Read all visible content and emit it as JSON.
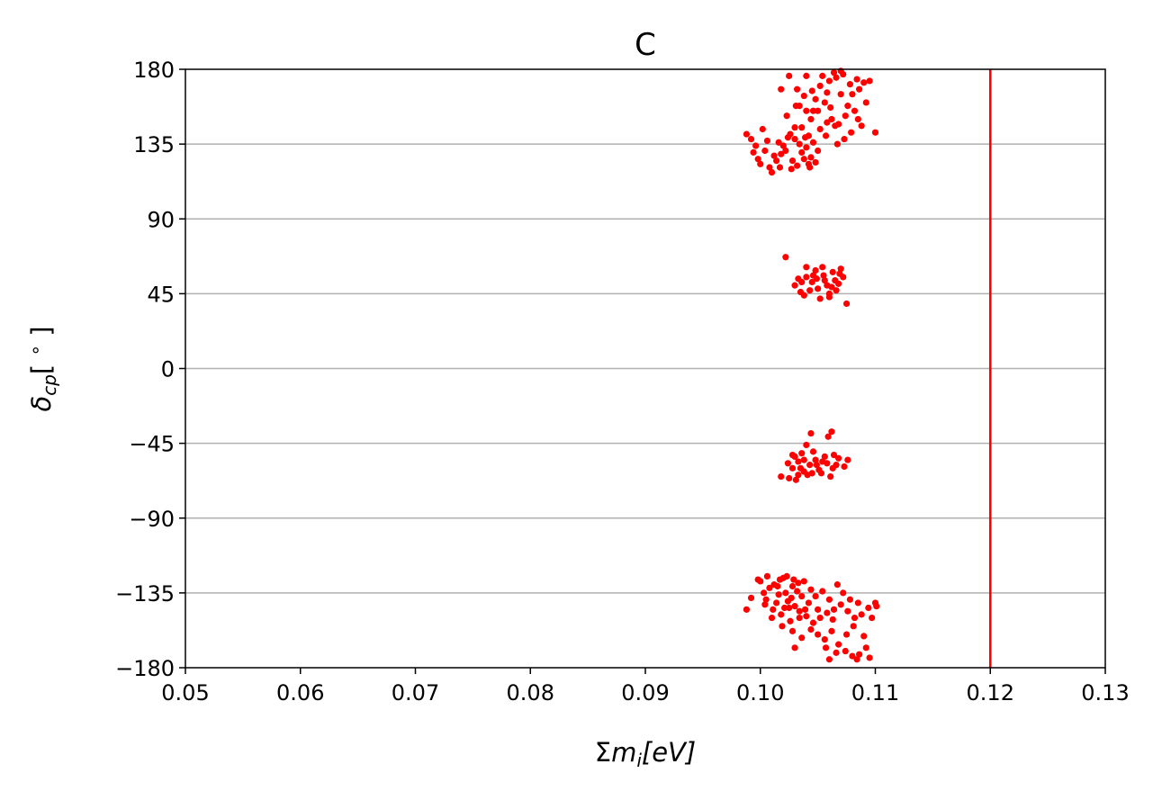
{
  "chart_data": {
    "type": "scatter",
    "title": "C",
    "xlabel_parts": [
      "Σ",
      "m",
      "i",
      "[",
      "eV",
      "]"
    ],
    "ylabel_parts": [
      "δ",
      "cp",
      "[ ",
      "∘",
      " ]"
    ],
    "xlim": [
      0.05,
      0.13
    ],
    "ylim": [
      -180,
      180
    ],
    "xticks": [
      0.05,
      0.06,
      0.07,
      0.08,
      0.09,
      0.1,
      0.11,
      0.12,
      0.13
    ],
    "xtick_labels": [
      "0.05",
      "0.06",
      "0.07",
      "0.08",
      "0.09",
      "0.10",
      "0.11",
      "0.12",
      "0.13"
    ],
    "yticks": [
      180,
      135,
      90,
      45,
      0,
      -45,
      -90,
      -135,
      -180
    ],
    "ytick_labels": [
      "180",
      "135",
      "90",
      "45",
      "0",
      "−45",
      "−90",
      "−135",
      "−180"
    ],
    "grid": "horizontal",
    "point_color": "#ff0000",
    "vline": {
      "x": 0.12,
      "color": "#ff0000"
    },
    "series": [
      {
        "points": [
          [
            0.1004,
            131
          ],
          [
            0.1012,
            128
          ],
          [
            0.102,
            134
          ],
          [
            0.1028,
            125
          ],
          [
            0.1036,
            130
          ],
          [
            0.1044,
            127
          ],
          [
            0.0992,
            138
          ],
          [
            0.0998,
            126
          ],
          [
            0.1008,
            121
          ],
          [
            0.1016,
            136
          ],
          [
            0.1024,
            139
          ],
          [
            0.1032,
            122
          ],
          [
            0.104,
            133
          ],
          [
            0.1048,
            124
          ],
          [
            0.0988,
            141
          ],
          [
            0.1002,
            144
          ],
          [
            0.101,
            118
          ],
          [
            0.1018,
            129
          ],
          [
            0.1026,
            141
          ],
          [
            0.1034,
            135
          ],
          [
            0.1042,
            123
          ],
          [
            0.105,
            131
          ],
          [
            0.0996,
            134
          ],
          [
            0.1006,
            137
          ],
          [
            0.1014,
            125
          ],
          [
            0.1022,
            131
          ],
          [
            0.103,
            138
          ],
          [
            0.1038,
            126
          ],
          [
            0.1046,
            136
          ],
          [
            0.1,
            123
          ],
          [
            0.1017,
            121
          ],
          [
            0.1039,
            139
          ],
          [
            0.1027,
            120
          ],
          [
            0.0994,
            130
          ],
          [
            0.1043,
            121
          ],
          [
            0.1023,
            152
          ],
          [
            0.1031,
            158
          ],
          [
            0.1038,
            164
          ],
          [
            0.1045,
            167
          ],
          [
            0.1052,
            170
          ],
          [
            0.106,
            173
          ],
          [
            0.1066,
            175
          ],
          [
            0.1072,
            177
          ],
          [
            0.1078,
            171
          ],
          [
            0.1084,
            174
          ],
          [
            0.109,
            172
          ],
          [
            0.1095,
            173
          ],
          [
            0.1036,
            145
          ],
          [
            0.1044,
            150
          ],
          [
            0.105,
            155
          ],
          [
            0.1056,
            160
          ],
          [
            0.1062,
            150
          ],
          [
            0.1068,
            147
          ],
          [
            0.1074,
            152
          ],
          [
            0.108,
            165
          ],
          [
            0.1086,
            168
          ],
          [
            0.1092,
            160
          ],
          [
            0.104,
            176
          ],
          [
            0.1048,
            162
          ],
          [
            0.1054,
            176
          ],
          [
            0.1058,
            166
          ],
          [
            0.1064,
            178
          ],
          [
            0.107,
            179
          ],
          [
            0.1076,
            158
          ],
          [
            0.1082,
            155
          ],
          [
            0.1088,
            146
          ],
          [
            0.11,
            142
          ],
          [
            0.1034,
            158
          ],
          [
            0.1042,
            140
          ],
          [
            0.1052,
            144
          ],
          [
            0.1061,
            157
          ],
          [
            0.1067,
            135
          ],
          [
            0.1073,
            138
          ],
          [
            0.1079,
            142
          ],
          [
            0.1085,
            150
          ],
          [
            0.1018,
            168
          ],
          [
            0.1025,
            176
          ],
          [
            0.1032,
            168
          ],
          [
            0.104,
            155
          ],
          [
            0.1057,
            140
          ],
          [
            0.1065,
            146
          ],
          [
            0.103,
            145
          ],
          [
            0.1058,
            148
          ],
          [
            0.107,
            165
          ],
          [
            0.1046,
            155
          ],
          [
            0.103,
            50
          ],
          [
            0.1035,
            46
          ],
          [
            0.104,
            55
          ],
          [
            0.1045,
            52
          ],
          [
            0.105,
            48
          ],
          [
            0.1055,
            56
          ],
          [
            0.106,
            45
          ],
          [
            0.1065,
            53
          ],
          [
            0.107,
            60
          ],
          [
            0.104,
            61
          ],
          [
            0.1048,
            59
          ],
          [
            0.1052,
            42
          ],
          [
            0.1058,
            50
          ],
          [
            0.1063,
            58
          ],
          [
            0.1068,
            51
          ],
          [
            0.1043,
            47
          ],
          [
            0.1056,
            53
          ],
          [
            0.1036,
            52
          ],
          [
            0.1046,
            56
          ],
          [
            0.1062,
            49
          ],
          [
            0.1072,
            55
          ],
          [
            0.1038,
            44
          ],
          [
            0.106,
            43
          ],
          [
            0.1022,
            67
          ],
          [
            0.1075,
            39
          ],
          [
            0.1049,
            54
          ],
          [
            0.1066,
            47
          ],
          [
            0.1054,
            61
          ],
          [
            0.1033,
            54
          ],
          [
            0.1069,
            57
          ],
          [
            0.1028,
            -60
          ],
          [
            0.1033,
            -56
          ],
          [
            0.1038,
            -62
          ],
          [
            0.1043,
            -58
          ],
          [
            0.1048,
            -55
          ],
          [
            0.1053,
            -63
          ],
          [
            0.1058,
            -57
          ],
          [
            0.1063,
            -60
          ],
          [
            0.1068,
            -54
          ],
          [
            0.1073,
            -59
          ],
          [
            0.103,
            -53
          ],
          [
            0.1036,
            -51
          ],
          [
            0.1041,
            -64
          ],
          [
            0.1046,
            -50
          ],
          [
            0.1051,
            -61
          ],
          [
            0.1056,
            -53
          ],
          [
            0.1061,
            -65
          ],
          [
            0.1066,
            -58
          ],
          [
            0.1031,
            -67
          ],
          [
            0.1025,
            -66
          ],
          [
            0.1018,
            -65
          ],
          [
            0.104,
            -46
          ],
          [
            0.1044,
            -39
          ],
          [
            0.1062,
            -38
          ],
          [
            0.1059,
            -41
          ],
          [
            0.1076,
            -55
          ],
          [
            0.1035,
            -60
          ],
          [
            0.1049,
            -58
          ],
          [
            0.1054,
            -56
          ],
          [
            0.1024,
            -57
          ],
          [
            0.1033,
            -64
          ],
          [
            0.1045,
            -63
          ],
          [
            0.1064,
            -52
          ],
          [
            0.1038,
            -55
          ],
          [
            0.1028,
            -52
          ],
          [
            0.1,
            -128
          ],
          [
            0.1008,
            -132
          ],
          [
            0.1016,
            -136
          ],
          [
            0.1024,
            -140
          ],
          [
            0.1032,
            -134
          ],
          [
            0.0992,
            -138
          ],
          [
            0.1004,
            -142
          ],
          [
            0.1012,
            -130
          ],
          [
            0.102,
            -126
          ],
          [
            0.1028,
            -131
          ],
          [
            0.1036,
            -137
          ],
          [
            0.0988,
            -145
          ],
          [
            0.0998,
            -127
          ],
          [
            0.1006,
            -125
          ],
          [
            0.1014,
            -141
          ],
          [
            0.1022,
            -135
          ],
          [
            0.103,
            -143
          ],
          [
            0.1038,
            -128
          ],
          [
            0.1018,
            -148
          ],
          [
            0.1026,
            -152
          ],
          [
            0.1034,
            -146
          ],
          [
            0.104,
            -149
          ],
          [
            0.1046,
            -153
          ],
          [
            0.1052,
            -150
          ],
          [
            0.1058,
            -147
          ],
          [
            0.1064,
            -145
          ],
          [
            0.107,
            -142
          ],
          [
            0.1076,
            -146
          ],
          [
            0.1082,
            -150
          ],
          [
            0.1088,
            -148
          ],
          [
            0.1094,
            -144
          ],
          [
            0.11,
            -141
          ],
          [
            0.1044,
            -157
          ],
          [
            0.105,
            -160
          ],
          [
            0.1056,
            -163
          ],
          [
            0.1062,
            -158
          ],
          [
            0.1068,
            -166
          ],
          [
            0.1074,
            -170
          ],
          [
            0.108,
            -173
          ],
          [
            0.1086,
            -172
          ],
          [
            0.1092,
            -168
          ],
          [
            0.1095,
            -174
          ],
          [
            0.103,
            -168
          ],
          [
            0.1036,
            -162
          ],
          [
            0.106,
            -175
          ],
          [
            0.1066,
            -171
          ],
          [
            0.1084,
            -175
          ],
          [
            0.109,
            -161
          ],
          [
            0.1042,
            -141
          ],
          [
            0.1048,
            -137
          ],
          [
            0.1054,
            -134
          ],
          [
            0.106,
            -139
          ],
          [
            0.1072,
            -135
          ],
          [
            0.1078,
            -139
          ],
          [
            0.1085,
            -141
          ],
          [
            0.1023,
            -125
          ],
          [
            0.1003,
            -135
          ],
          [
            0.1015,
            -131
          ],
          [
            0.1027,
            -138
          ],
          [
            0.1021,
            -144
          ],
          [
            0.1033,
            -129
          ],
          [
            0.1039,
            -145
          ],
          [
            0.101,
            -150
          ],
          [
            0.1019,
            -155
          ],
          [
            0.1028,
            -158
          ],
          [
            0.1034,
            -150
          ],
          [
            0.1097,
            -150
          ],
          [
            0.1057,
            -168
          ],
          [
            0.1075,
            -160
          ],
          [
            0.1063,
            -151
          ],
          [
            0.1101,
            -143
          ],
          [
            0.1005,
            -139
          ],
          [
            0.1011,
            -145
          ],
          [
            0.1017,
            -127
          ],
          [
            0.1029,
            -127
          ],
          [
            0.1044,
            -133
          ],
          [
            0.105,
            -145
          ],
          [
            0.1067,
            -130
          ],
          [
            0.1081,
            -155
          ],
          [
            0.1025,
            -144
          ]
        ]
      }
    ]
  }
}
